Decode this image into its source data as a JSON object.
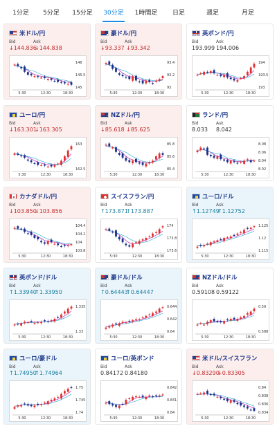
{
  "tabs": [
    "1分足",
    "5分足",
    "15分足",
    "30分足",
    "1時間足",
    "日足",
    "週足",
    "月足"
  ],
  "active_tab": "30分足",
  "labels": {
    "bid": "Bid",
    "ask": "Ask"
  },
  "cards": [
    {
      "pair": "米ドル/円",
      "flag": "us-flag-icon",
      "bg": "pink",
      "dir": "down",
      "bid": "144.836",
      "ask": "144.838",
      "x_ticks": [
        "5:30",
        "12:30",
        "18:30"
      ],
      "y_ticks": [
        "146",
        "145.5",
        "145"
      ],
      "chart_data": {
        "type": "candlestick",
        "trend": [
          0.85,
          0.8,
          0.72,
          0.6,
          0.5,
          0.48,
          0.45,
          0.42,
          0.4,
          0.38,
          0.36,
          0.32,
          0.28,
          0.25,
          0.22,
          0.2,
          0.18,
          0.15
        ]
      }
    },
    {
      "pair": "豪ドル/円",
      "flag": "au-flag-icon",
      "bg": "pink",
      "dir": "down",
      "bid": "93.337",
      "ask": "93.342",
      "x_ticks": [
        "5:30",
        "12:30",
        "18:30"
      ],
      "y_ticks": [
        "93.4",
        "93.2",
        "93"
      ],
      "chart_data": {
        "type": "candlestick",
        "trend": [
          0.9,
          0.85,
          0.7,
          0.6,
          0.5,
          0.45,
          0.4,
          0.35,
          0.45,
          0.3,
          0.25,
          0.2,
          0.3,
          0.25,
          0.2,
          0.3,
          0.35,
          0.45
        ]
      }
    },
    {
      "pair": "英ポンド/円",
      "flag": "gb-flag-icon",
      "bg": "white",
      "dir": "flat",
      "bid": "193.999",
      "ask": "194.006",
      "x_ticks": [
        "5:30",
        "12:30",
        "18:30"
      ],
      "y_ticks": [
        "194",
        "193.5",
        "193"
      ],
      "chart_data": {
        "type": "candlestick",
        "trend": [
          0.5,
          0.55,
          0.6,
          0.58,
          0.62,
          0.55,
          0.5,
          0.45,
          0.5,
          0.4,
          0.35,
          0.3,
          0.32,
          0.38,
          0.45,
          0.6,
          0.75,
          0.88
        ]
      }
    },
    {
      "pair": "ユーロ/円",
      "flag": "eu-flag-icon",
      "bg": "pink",
      "dir": "down",
      "bid": "163.301",
      "ask": "163.305",
      "x_ticks": [
        "5:30",
        "12:30",
        "18:30"
      ],
      "y_ticks": [
        "163",
        "162.5"
      ],
      "chart_data": {
        "type": "candlestick",
        "trend": [
          0.6,
          0.55,
          0.5,
          0.45,
          0.35,
          0.3,
          0.25,
          0.2,
          0.2,
          0.18,
          0.15,
          0.15,
          0.2,
          0.25,
          0.35,
          0.5,
          0.7,
          0.85
        ]
      }
    },
    {
      "pair": "NZドル/円",
      "flag": "nz-flag-icon",
      "bg": "pink",
      "dir": "down",
      "bid": "85.618",
      "ask": "85.625",
      "x_ticks": [
        "5:30",
        "12:30",
        "18:30"
      ],
      "y_ticks": [
        "85.8",
        "85.6",
        "85.4"
      ],
      "chart_data": {
        "type": "candlestick",
        "trend": [
          0.9,
          0.85,
          0.8,
          0.65,
          0.55,
          0.45,
          0.35,
          0.3,
          0.35,
          0.3,
          0.25,
          0.2,
          0.25,
          0.3,
          0.35,
          0.5,
          0.6,
          0.55
        ]
      }
    },
    {
      "pair": "ランド/円",
      "flag": "za-flag-icon",
      "bg": "white",
      "dir": "flat",
      "bid": "8.033",
      "ask": "8.042",
      "x_ticks": [
        "5:30",
        "12:30",
        "18:30"
      ],
      "y_ticks": [
        "8.08",
        "8.06",
        "8.04",
        "8.02"
      ],
      "chart_data": {
        "type": "candlestick",
        "trend": [
          0.7,
          0.8,
          0.75,
          0.55,
          0.5,
          0.45,
          0.5,
          0.4,
          0.35,
          0.3,
          0.35,
          0.3,
          0.25,
          0.3,
          0.35,
          0.4,
          0.3,
          0.35
        ]
      }
    },
    {
      "pair": "カナダドル/円",
      "flag": "ca-flag-icon",
      "bg": "pink",
      "dir": "down",
      "bid": "103.850",
      "ask": "103.856",
      "x_ticks": [
        "5:30",
        "12:30",
        "18:30"
      ],
      "y_ticks": [
        "104.4",
        "104.2",
        "104",
        "103.8"
      ],
      "chart_data": {
        "type": "candlestick",
        "trend": [
          0.85,
          0.82,
          0.8,
          0.7,
          0.65,
          0.6,
          0.5,
          0.45,
          0.35,
          0.3,
          0.4,
          0.35,
          0.3,
          0.25,
          0.2,
          0.22,
          0.25,
          0.28
        ]
      }
    },
    {
      "pair": "スイスフラン/円",
      "flag": "ch-flag-icon",
      "bg": "white",
      "dir": "up",
      "bid": "173.871",
      "ask": "173.887",
      "x_ticks": [
        "5:30",
        "12:30",
        "18:30"
      ],
      "y_ticks": [
        "174",
        "173.8",
        "173.6"
      ],
      "chart_data": {
        "type": "candlestick",
        "trend": [
          0.8,
          0.75,
          0.7,
          0.55,
          0.45,
          0.35,
          0.25,
          0.2,
          0.3,
          0.35,
          0.4,
          0.45,
          0.5,
          0.55,
          0.65,
          0.7,
          0.8,
          0.9
        ]
      }
    },
    {
      "pair": "ユーロ/ドル",
      "flag": "eu-flag-icon",
      "bg": "blue",
      "dir": "up",
      "bid": "1.12749",
      "ask": "1.12752",
      "x_ticks": [
        "5:30",
        "12:30",
        "18:30"
      ],
      "y_ticks": [
        "1.125",
        "1.12",
        "1.115"
      ],
      "chart_data": {
        "type": "candlestick",
        "trend": [
          0.2,
          0.22,
          0.25,
          0.3,
          0.35,
          0.38,
          0.42,
          0.45,
          0.5,
          0.52,
          0.55,
          0.6,
          0.65,
          0.7,
          0.78,
          0.82,
          0.85,
          0.9
        ]
      }
    },
    {
      "pair": "英ポンド/ドル",
      "flag": "gb-flag-icon",
      "bg": "blue",
      "dir": "up",
      "bid": "1.33940",
      "ask": "1.33950",
      "x_ticks": [
        "5:30",
        "12:30",
        "18:30"
      ],
      "y_ticks": [
        "1.335",
        "1.33"
      ],
      "chart_data": {
        "type": "candlestick",
        "trend": [
          0.3,
          0.32,
          0.35,
          0.4,
          0.38,
          0.4,
          0.35,
          0.38,
          0.4,
          0.42,
          0.4,
          0.45,
          0.5,
          0.55,
          0.65,
          0.75,
          0.85,
          0.92
        ]
      }
    },
    {
      "pair": "豪ドル/ドル",
      "flag": "au-flag-icon",
      "bg": "blue",
      "dir": "up",
      "bid": "0.64443",
      "ask": "0.64447",
      "x_ticks": [
        "5:30",
        "12:30",
        "18:30"
      ],
      "y_ticks": [
        "0.644",
        "0.642",
        "0.64"
      ],
      "chart_data": {
        "type": "candlestick",
        "trend": [
          0.2,
          0.25,
          0.3,
          0.32,
          0.35,
          0.4,
          0.38,
          0.4,
          0.45,
          0.5,
          0.48,
          0.55,
          0.6,
          0.65,
          0.7,
          0.75,
          0.85,
          0.9
        ]
      }
    },
    {
      "pair": "NZドル/ドル",
      "flag": "nz-flag-icon",
      "bg": "white",
      "dir": "flat",
      "bid": "0.59108",
      "ask": "0.59122",
      "x_ticks": [
        "5:30",
        "12:30",
        "18:30"
      ],
      "y_ticks": [
        "0.59",
        "0.588"
      ],
      "chart_data": {
        "type": "candlestick",
        "trend": [
          0.3,
          0.35,
          0.3,
          0.4,
          0.45,
          0.42,
          0.4,
          0.38,
          0.42,
          0.45,
          0.5,
          0.48,
          0.5,
          0.55,
          0.6,
          0.7,
          0.75,
          0.85
        ]
      }
    },
    {
      "pair": "ユーロ/豪ドル",
      "flag": "eu-flag-icon",
      "bg": "blue",
      "dir": "up",
      "bid": "1.74950",
      "ask": "1.74964",
      "x_ticks": [
        "5:30",
        "12:30",
        "18:30"
      ],
      "y_ticks": [
        "1.75",
        "1.745",
        "1.74"
      ],
      "chart_data": {
        "type": "candlestick",
        "trend": [
          0.25,
          0.3,
          0.32,
          0.35,
          0.3,
          0.28,
          0.3,
          0.32,
          0.35,
          0.4,
          0.45,
          0.5,
          0.55,
          0.6,
          0.7,
          0.8,
          0.88,
          0.92
        ]
      }
    },
    {
      "pair": "ユーロ/英ポンド",
      "flag": "eu-flag-icon",
      "bg": "white",
      "dir": "flat",
      "bid": "0.84172",
      "ask": "0.84180",
      "x_ticks": [
        "5:30",
        "12:30",
        "18:30"
      ],
      "y_ticks": [
        "0.842",
        "0.841",
        "0.84"
      ],
      "chart_data": {
        "type": "candlestick",
        "trend": [
          0.4,
          0.35,
          0.3,
          0.25,
          0.3,
          0.35,
          0.5,
          0.55,
          0.6,
          0.62,
          0.6,
          0.58,
          0.6,
          0.65,
          0.6,
          0.62,
          0.65,
          0.68
        ]
      }
    },
    {
      "pair": "米ドル/スイスフラン",
      "flag": "us-flag-icon",
      "bg": "pink",
      "dir": "down",
      "bid": "0.83290",
      "ask": "0.83305",
      "x_ticks": [
        "5:30",
        "12:30",
        "18:30"
      ],
      "y_ticks": [
        "0.84",
        "0.838",
        "0.836",
        "0.834"
      ],
      "chart_data": {
        "type": "candlestick",
        "trend": [
          0.7,
          0.72,
          0.75,
          0.7,
          0.68,
          0.65,
          0.6,
          0.55,
          0.5,
          0.45,
          0.48,
          0.42,
          0.35,
          0.3,
          0.25,
          0.2,
          0.15,
          0.12
        ]
      }
    }
  ]
}
